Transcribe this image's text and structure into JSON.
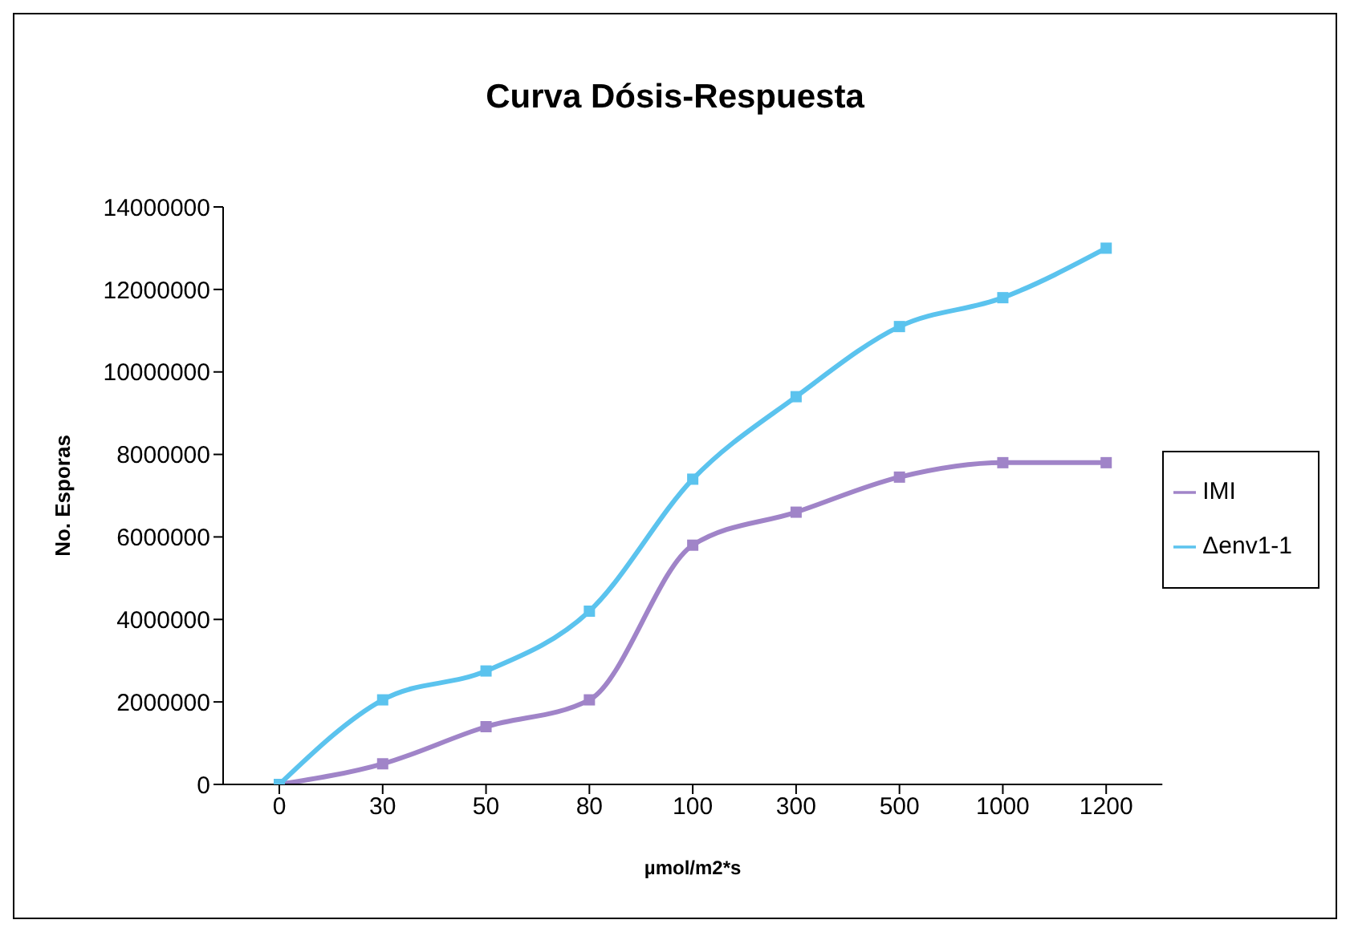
{
  "chart_data": {
    "type": "line",
    "title": "Curva Dósis-Respuesta",
    "xlabel": "µmol/m2*s",
    "ylabel": "No. Esporas",
    "categories": [
      "0",
      "30",
      "50",
      "80",
      "100",
      "300",
      "500",
      "1000",
      "1200"
    ],
    "series": [
      {
        "name": "IMI",
        "color": "#a084c8",
        "values": [
          0,
          500000,
          1400000,
          2050000,
          5800000,
          6600000,
          7450000,
          7800000,
          7800000
        ]
      },
      {
        "name": "Δenv1-1",
        "color": "#5bc3ee",
        "values": [
          0,
          2050000,
          2750000,
          4200000,
          7400000,
          9400000,
          11100000,
          11800000,
          13000000
        ]
      }
    ],
    "ylim": [
      0,
      14000000
    ],
    "yticks": [
      0,
      2000000,
      4000000,
      6000000,
      8000000,
      10000000,
      12000000,
      14000000
    ],
    "grid": false,
    "legend": "right",
    "marker": "square",
    "line_style": "solid"
  }
}
